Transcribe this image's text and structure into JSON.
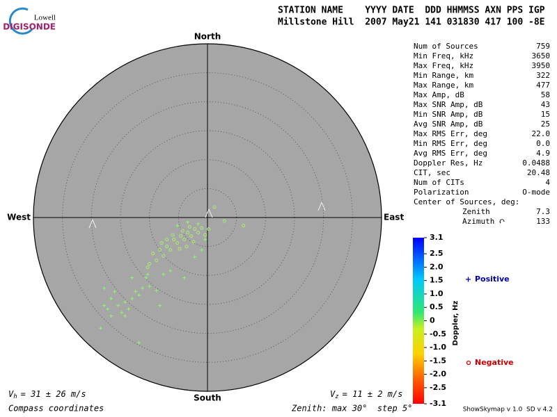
{
  "logo": {
    "top": "Lowell",
    "bottom": "DIGISONDE"
  },
  "header": {
    "line1": "STATION NAME    YYYY DATE  DDD HHMMSS AXN PPS IGP",
    "line2": "Millstone Hill  2007 May21 141 031830 417 100 -8E"
  },
  "stats": [
    {
      "label": "Num of Sources",
      "value": "759"
    },
    {
      "label": "Min Freq, kHz",
      "value": "3650"
    },
    {
      "label": "Max Freq, kHz",
      "value": "3950"
    },
    {
      "label": "Min Range, km",
      "value": "322"
    },
    {
      "label": "Max Range, km",
      "value": "477"
    },
    {
      "label": "Max Amp, dB",
      "value": "58"
    },
    {
      "label": "Max SNR Amp, dB",
      "value": "43"
    },
    {
      "label": "Min SNR Amp, dB",
      "value": "15"
    },
    {
      "label": "Avg SNR Amp, dB",
      "value": "25"
    },
    {
      "label": "Max RMS Err, deg",
      "value": "22.0"
    },
    {
      "label": "Min RMS Err, deg",
      "value": "0.0"
    },
    {
      "label": "Avg RMS Err, deg",
      "value": "4.9"
    },
    {
      "label": "Doppler Res, Hz",
      "value": "0.0488"
    },
    {
      "label": "CIT, sec",
      "value": "20.48"
    },
    {
      "label": "Num of CITs",
      "value": "4"
    },
    {
      "label": "Polarization",
      "value": "O-mode"
    },
    {
      "label": "Center of Sources, deg:",
      "value": ""
    }
  ],
  "center": [
    {
      "label": "Zenith",
      "value": "7.3"
    },
    {
      "label": "Azimuth",
      "value": "133"
    }
  ],
  "footer": {
    "vh": {
      "symbol": "V",
      "subscript": "h",
      "text": "= 31 ± 26 m/s"
    },
    "vz": {
      "symbol": "V",
      "subscript": "z",
      "text": "= 11 ± 2 m/s"
    },
    "coords": "Compass coordinates",
    "zenith": "Zenith: max 30°  step 5°",
    "version": "ShowSkymap v 1.0  SD v 4.2"
  },
  "chart_data": {
    "type": "polar-scatter",
    "directions": {
      "north": "North",
      "south": "South",
      "east": "East",
      "west": "West"
    },
    "rlim": [
      0,
      30
    ],
    "rticks": [
      5,
      10,
      15,
      20,
      25,
      30
    ],
    "colorbar": {
      "label": "Doppler, Hz",
      "lim": [
        -3.1,
        3.1
      ],
      "ticks": [
        3.1,
        2.5,
        {
          "value": 2,
          "label": "2.0"
        },
        1.5,
        {
          "value": 1,
          "label": "1.0"
        },
        0.5,
        0,
        -0.5,
        {
          "value": -1,
          "label": "-1.0"
        },
        -1.5,
        {
          "value": -2,
          "label": "-2.0"
        },
        -2.5,
        -3.1
      ]
    },
    "series": [
      {
        "name": "Positive",
        "marker": "plus",
        "color": "#8cf76a",
        "label_color": "#0000c0",
        "x": [
          -17.8,
          -16.6,
          -15.4,
          -14.2,
          -13.0,
          -11.8,
          -13.6,
          -14.8,
          -12.4,
          -11.2,
          -10.0,
          -8.8,
          -16.6,
          -18.4,
          -17.2,
          -11.8,
          -16.0,
          -10.6,
          -8.2,
          -4.0,
          -13.0,
          -10.3,
          -2.2,
          -1.0,
          -6.4,
          -7.6,
          -3.4,
          -1.6,
          -5.2,
          -0.4,
          -14.2,
          -17.8
        ],
        "y": [
          -12.2,
          -14.0,
          -15.2,
          -14.6,
          -14.0,
          -13.4,
          -15.8,
          -16.4,
          -12.8,
          -12.2,
          -11.9,
          -12.6,
          -17.0,
          -19.1,
          -15.8,
          -21.6,
          -12.8,
          -10.4,
          -15.2,
          -10.4,
          -10.4,
          -9.8,
          -6.8,
          -5.6,
          -9.2,
          -9.8,
          -0.8,
          -1.1,
          -1.4,
          -3.8,
          -17.0,
          -15.2
        ]
      },
      {
        "name": "Negative",
        "marker": "circle",
        "color": "#a8f070",
        "label_color": "#d00000",
        "x": [
          -5.8,
          -4.6,
          -3.4,
          -2.2,
          -1.0,
          -7.0,
          -8.2,
          -9.4,
          -5.2,
          -4.0,
          -2.8,
          -1.6,
          -6.4,
          -7.6,
          -8.8,
          -10.0,
          -4.3,
          -3.1,
          -0.4,
          0.2,
          1.2,
          2.9,
          6.2,
          -6.0,
          -4.8,
          -3.6,
          -7.0,
          -2.4,
          -10.3,
          -7.9
        ],
        "y": [
          -3.8,
          -3.2,
          -2.6,
          -2.0,
          -1.8,
          -5.0,
          -5.6,
          -6.2,
          -4.4,
          -3.8,
          -3.2,
          -2.6,
          -5.6,
          -6.6,
          -7.4,
          -8.0,
          -2.3,
          -1.6,
          -3.0,
          -2.0,
          1.8,
          -0.6,
          -1.4,
          -3.0,
          -5.4,
          -5.0,
          -3.8,
          -4.2,
          -8.6,
          -4.4
        ]
      }
    ]
  }
}
